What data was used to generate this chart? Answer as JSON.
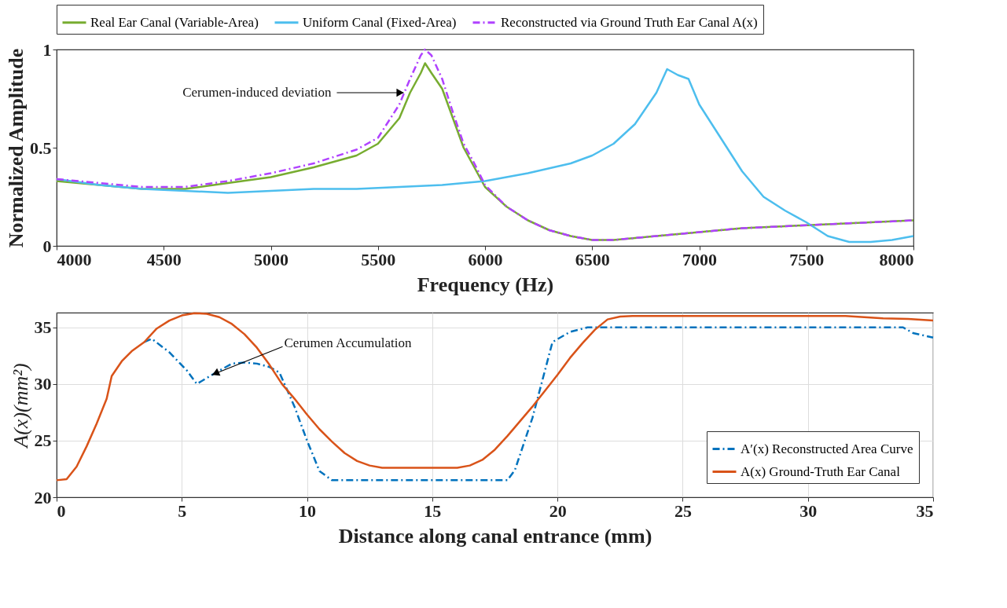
{
  "chart_data": [
    {
      "type": "line",
      "xlabel": "Frequency (Hz)",
      "ylabel": "Normalized Amplitude",
      "xlim": [
        4000,
        8000
      ],
      "ylim": [
        0,
        1
      ],
      "xticks": [
        4000,
        4500,
        5000,
        5500,
        6000,
        6500,
        7000,
        7500,
        8000
      ],
      "yticks": [
        0,
        0.5,
        1
      ],
      "grid": false,
      "legend": "top",
      "marker": "none",
      "annotations": [
        {
          "text": "Cerumen-induced deviation",
          "x": 5620,
          "y": 0.78
        }
      ],
      "series": [
        {
          "name": "Real Ear Canal (Variable-Area)",
          "color": "#77ac30",
          "line_style": "solid",
          "x": [
            4000,
            4200,
            4400,
            4600,
            4800,
            5000,
            5200,
            5400,
            5500,
            5600,
            5650,
            5700,
            5720,
            5750,
            5800,
            5850,
            5900,
            5950,
            6000,
            6100,
            6200,
            6300,
            6400,
            6500,
            6600,
            6800,
            7000,
            7200,
            7400,
            7600,
            7800,
            8000
          ],
          "values": [
            0.33,
            0.31,
            0.29,
            0.29,
            0.32,
            0.35,
            0.4,
            0.46,
            0.52,
            0.65,
            0.78,
            0.88,
            0.93,
            0.88,
            0.8,
            0.65,
            0.5,
            0.4,
            0.3,
            0.2,
            0.13,
            0.08,
            0.05,
            0.03,
            0.03,
            0.05,
            0.07,
            0.09,
            0.1,
            0.11,
            0.12,
            0.13
          ]
        },
        {
          "name": "Uniform Canal (Fixed-Area)",
          "color": "#4dbeee",
          "line_style": "solid",
          "x": [
            4000,
            4200,
            4400,
            4600,
            4800,
            5000,
            5200,
            5400,
            5600,
            5800,
            6000,
            6200,
            6400,
            6500,
            6600,
            6700,
            6800,
            6850,
            6900,
            6950,
            7000,
            7100,
            7200,
            7300,
            7400,
            7500,
            7600,
            7700,
            7800,
            7900,
            8000
          ],
          "values": [
            0.34,
            0.31,
            0.29,
            0.28,
            0.27,
            0.28,
            0.29,
            0.29,
            0.3,
            0.31,
            0.33,
            0.37,
            0.42,
            0.46,
            0.52,
            0.62,
            0.78,
            0.9,
            0.87,
            0.85,
            0.72,
            0.55,
            0.38,
            0.25,
            0.18,
            0.12,
            0.05,
            0.02,
            0.02,
            0.03,
            0.05
          ]
        },
        {
          "name": "Reconstructed via Ground Truth Ear Canal A(x)",
          "color": "#b042ff",
          "line_style": "dashed",
          "x": [
            4000,
            4200,
            4400,
            4600,
            4800,
            5000,
            5200,
            5400,
            5500,
            5600,
            5650,
            5700,
            5720,
            5750,
            5800,
            5850,
            5900,
            5950,
            6000,
            6100,
            6200,
            6300,
            6400,
            6500,
            6600,
            6800,
            7000,
            7200,
            7400,
            7600,
            7800,
            8000
          ],
          "values": [
            0.34,
            0.32,
            0.3,
            0.3,
            0.33,
            0.37,
            0.42,
            0.49,
            0.55,
            0.72,
            0.85,
            0.97,
            1,
            0.97,
            0.85,
            0.68,
            0.52,
            0.42,
            0.31,
            0.2,
            0.13,
            0.08,
            0.05,
            0.03,
            0.03,
            0.05,
            0.07,
            0.09,
            0.1,
            0.11,
            0.12,
            0.13
          ]
        }
      ]
    },
    {
      "type": "line",
      "xlabel": "Distance along canal entrance (mm)",
      "ylabel": "A(x)(mm²)",
      "xlim": [
        0,
        35
      ],
      "ylim": [
        20,
        36.3
      ],
      "xticks": [
        0,
        5,
        10,
        15,
        20,
        25,
        30,
        35
      ],
      "yticks": [
        20,
        25,
        30,
        35
      ],
      "grid": true,
      "legend": "bottom right",
      "marker": "none",
      "annotations": [
        {
          "text": "Cerumen Accumulation",
          "x": 6.2,
          "y": 30.8
        }
      ],
      "series": [
        {
          "name": "A′(x) Reconstructed Area Curve",
          "color": "#0072bd",
          "line_style": "dashed",
          "x": [
            3.5,
            3.8,
            4.5,
            5.2,
            5.6,
            6.2,
            7.0,
            7.5,
            8.0,
            8.5,
            8.9,
            9.5,
            10,
            10.5,
            11,
            18,
            18.3,
            19,
            19.8,
            20.5,
            21.2,
            33.8,
            34.2,
            35
          ],
          "values": [
            33.7,
            34.0,
            32.8,
            31.2,
            30.0,
            30.8,
            31.8,
            31.9,
            31.8,
            31.5,
            31.0,
            28.0,
            25.0,
            22.3,
            21.5,
            21.5,
            22.4,
            27.0,
            33.7,
            34.6,
            35.0,
            35.0,
            34.5,
            34.1
          ]
        },
        {
          "name": "A(x) Ground-Truth Ear Canal",
          "color": "#d95319",
          "line_style": "solid",
          "x": [
            0,
            0.4,
            0.8,
            1.2,
            1.6,
            2.0,
            2.2,
            2.6,
            3.0,
            3.5,
            4.0,
            4.5,
            5.0,
            5.5,
            6.0,
            6.5,
            7.0,
            7.5,
            8.0,
            8.5,
            9.0,
            9.5,
            10,
            10.5,
            11,
            11.5,
            12,
            12.5,
            13,
            14,
            15,
            16,
            16.5,
            17,
            17.5,
            18,
            18.5,
            19,
            19.5,
            20,
            20.5,
            21,
            21.5,
            22,
            22.5,
            23,
            25,
            30,
            31.5,
            33,
            34,
            35
          ],
          "values": [
            21.5,
            21.6,
            22.7,
            24.5,
            26.5,
            28.7,
            30.7,
            32,
            32.9,
            33.7,
            34.9,
            35.6,
            36.05,
            36.25,
            36.2,
            35.9,
            35.3,
            34.4,
            33.2,
            31.7,
            30.0,
            28.7,
            27.3,
            26.0,
            24.9,
            23.9,
            23.2,
            22.8,
            22.6,
            22.6,
            22.6,
            22.6,
            22.8,
            23.3,
            24.2,
            25.4,
            26.7,
            28.0,
            29.4,
            30.8,
            32.3,
            33.6,
            34.8,
            35.7,
            35.95,
            36.0,
            36.0,
            36.0,
            36.0,
            35.8,
            35.75,
            35.6
          ]
        }
      ]
    }
  ]
}
